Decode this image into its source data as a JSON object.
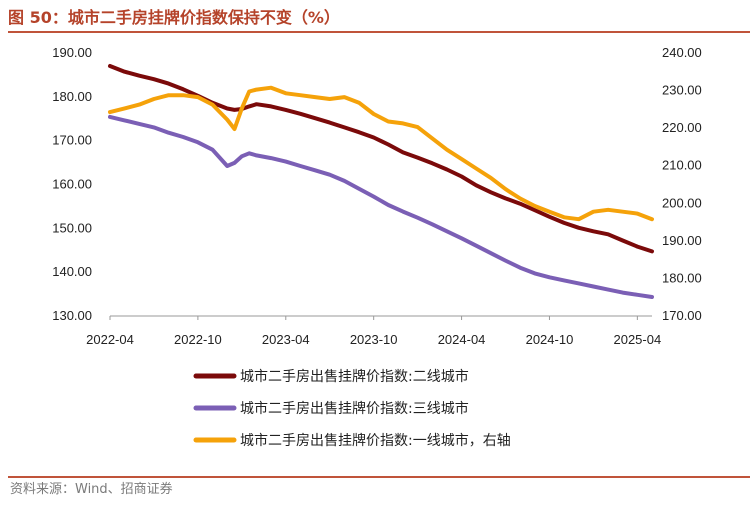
{
  "figure": {
    "title": "图 50：城市二手房挂牌价指数保持不变（%）",
    "source": "资料来源：Wind、招商证券"
  },
  "chart_data": {
    "type": "line",
    "title": "城市二手房挂牌价指数保持不变（%）",
    "x_ticks": [
      "2022-04",
      "2022-10",
      "2023-04",
      "2023-10",
      "2024-04",
      "2024-10",
      "2025-04"
    ],
    "x_range": [
      "2022-04",
      "2025-05"
    ],
    "y_left": {
      "min": 130,
      "max": 190,
      "ticks": [
        "130.00",
        "140.00",
        "150.00",
        "160.00",
        "170.00",
        "180.00",
        "190.00"
      ]
    },
    "y_right": {
      "min": 170,
      "max": 240,
      "ticks": [
        "170.00",
        "180.00",
        "190.00",
        "200.00",
        "210.00",
        "220.00",
        "230.00",
        "240.00"
      ]
    },
    "x_index": [
      0,
      1,
      2,
      3,
      4,
      5,
      6,
      7,
      8,
      8.5,
      9,
      9.5,
      10,
      11,
      12,
      13,
      14,
      15,
      16,
      17,
      18,
      19,
      20,
      21,
      22,
      23,
      24,
      25,
      26,
      27,
      28,
      29,
      30,
      31,
      32,
      33,
      34,
      35,
      36,
      37
    ],
    "series": [
      {
        "name": "城市二手房出售挂牌价指数:二线城市",
        "axis": "left",
        "color": "#7b0a0a",
        "values": [
          186.8,
          185.5,
          184.6,
          183.8,
          182.8,
          181.5,
          180.0,
          178.4,
          177.1,
          176.8,
          177.0,
          177.6,
          178.1,
          177.6,
          176.8,
          175.9,
          174.9,
          173.9,
          172.8,
          171.7,
          170.5,
          168.9,
          167.1,
          165.9,
          164.6,
          163.2,
          161.6,
          159.6,
          158.0,
          156.6,
          155.4,
          153.9,
          152.4,
          151.0,
          149.9,
          149.1,
          148.4,
          147.0,
          145.6,
          144.5
        ]
      },
      {
        "name": "城市二手房出售挂牌价指数:三线城市",
        "axis": "left",
        "color": "#7b5fb5",
        "values": [
          175.2,
          174.4,
          173.6,
          172.8,
          171.6,
          170.6,
          169.4,
          167.7,
          164.0,
          164.7,
          166.2,
          166.9,
          166.4,
          165.8,
          165.0,
          164.0,
          163.0,
          162.0,
          160.6,
          158.8,
          157.0,
          155.1,
          153.6,
          152.2,
          150.7,
          149.1,
          147.5,
          145.8,
          144.1,
          142.4,
          140.8,
          139.5,
          138.6,
          137.9,
          137.2,
          136.5,
          135.8,
          135.1,
          134.6,
          134.1
        ]
      },
      {
        "name": "城市二手房出售挂牌价指数:一线城市，右轴",
        "axis": "right",
        "color": "#f5a20a",
        "values": [
          224.0,
          225.0,
          226.0,
          227.5,
          228.5,
          228.5,
          228.0,
          226.0,
          222.0,
          219.5,
          225.0,
          229.5,
          230.0,
          230.5,
          229.0,
          228.5,
          228.0,
          227.5,
          228.0,
          226.5,
          223.5,
          221.5,
          221.0,
          220.0,
          217.0,
          214.0,
          211.5,
          209.0,
          206.5,
          203.5,
          201.0,
          199.0,
          197.5,
          196.0,
          195.5,
          197.5,
          198.0,
          197.5,
          197.0,
          195.5
        ]
      }
    ],
    "legend_position": "bottom"
  }
}
